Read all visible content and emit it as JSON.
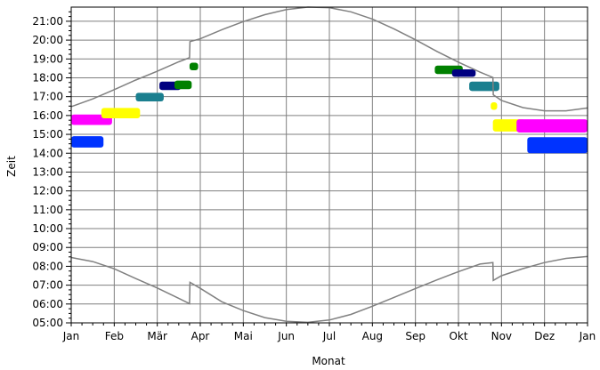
{
  "chart_data": {
    "type": "scatter",
    "xlabel": "Monat",
    "ylabel": "Zeit",
    "x_ticks": [
      "Jan",
      "Feb",
      "Mär",
      "Apr",
      "Mai",
      "Jun",
      "Jul",
      "Aug",
      "Sep",
      "Okt",
      "Nov",
      "Dez",
      "Jan"
    ],
    "y_ticks": [
      "05:00",
      "06:00",
      "07:00",
      "08:00",
      "09:00",
      "10:00",
      "11:00",
      "12:00",
      "13:00",
      "14:00",
      "15:00",
      "16:00",
      "17:00",
      "18:00",
      "19:00",
      "20:00",
      "21:00"
    ],
    "xlim": [
      0,
      12
    ],
    "ylim": [
      5,
      21.75
    ],
    "grid": true,
    "lines": [
      {
        "color": "#808080",
        "points": [
          [
            0,
            16.47
          ],
          [
            0.5,
            16.88
          ],
          [
            1,
            17.37
          ],
          [
            1.5,
            17.88
          ],
          [
            2,
            18.35
          ],
          [
            2.5,
            18.85
          ],
          [
            2.75,
            19.07
          ],
          [
            2.76,
            19.92
          ],
          [
            3,
            20.07
          ],
          [
            3.5,
            20.55
          ],
          [
            4,
            20.98
          ],
          [
            4.5,
            21.35
          ],
          [
            5,
            21.62
          ],
          [
            5.5,
            21.75
          ],
          [
            6,
            21.72
          ],
          [
            6.5,
            21.5
          ],
          [
            7,
            21.12
          ],
          [
            7.5,
            20.6
          ],
          [
            8,
            20.02
          ],
          [
            8.5,
            19.4
          ],
          [
            9,
            18.83
          ],
          [
            9.5,
            18.3
          ],
          [
            9.8,
            18.02
          ],
          [
            9.81,
            17.1
          ],
          [
            10,
            16.8
          ],
          [
            10.5,
            16.42
          ],
          [
            11,
            16.25
          ],
          [
            11.5,
            16.25
          ],
          [
            12,
            16.4
          ]
        ]
      },
      {
        "color": "#808080",
        "points": [
          [
            0,
            8.47
          ],
          [
            0.5,
            8.25
          ],
          [
            1,
            7.87
          ],
          [
            1.5,
            7.35
          ],
          [
            2,
            6.85
          ],
          [
            2.5,
            6.3
          ],
          [
            2.75,
            6.02
          ],
          [
            2.76,
            7.15
          ],
          [
            3,
            6.83
          ],
          [
            3.5,
            6.12
          ],
          [
            4,
            5.65
          ],
          [
            4.5,
            5.28
          ],
          [
            5,
            5.08
          ],
          [
            5.5,
            5.03
          ],
          [
            6,
            5.15
          ],
          [
            6.5,
            5.45
          ],
          [
            7,
            5.88
          ],
          [
            7.5,
            6.35
          ],
          [
            8,
            6.82
          ],
          [
            8.5,
            7.28
          ],
          [
            9,
            7.72
          ],
          [
            9.5,
            8.12
          ],
          [
            9.8,
            8.2
          ],
          [
            9.81,
            7.25
          ],
          [
            10,
            7.5
          ],
          [
            10.5,
            7.88
          ],
          [
            11,
            8.2
          ],
          [
            11.5,
            8.42
          ],
          [
            12,
            8.52
          ]
        ]
      }
    ],
    "blobs": [
      {
        "color": "#0033ff",
        "x": [
          0.0,
          0.75
        ],
        "y": [
          14.3,
          14.9
        ]
      },
      {
        "color": "#ff00ff",
        "x": [
          0.0,
          0.95
        ],
        "y": [
          15.5,
          16.05
        ]
      },
      {
        "color": "#ffff00",
        "x": [
          0.7,
          1.6
        ],
        "y": [
          15.85,
          16.4
        ]
      },
      {
        "color": "#1a7f8f",
        "x": [
          1.5,
          2.15
        ],
        "y": [
          16.75,
          17.2
        ]
      },
      {
        "color": "#000080",
        "x": [
          2.05,
          2.55
        ],
        "y": [
          17.35,
          17.8
        ]
      },
      {
        "color": "#008000",
        "x": [
          2.4,
          2.8
        ],
        "y": [
          17.4,
          17.85
        ]
      },
      {
        "color": "#008000",
        "x": [
          2.75,
          2.95
        ],
        "y": [
          18.4,
          18.8
        ]
      },
      {
        "color": "#008000",
        "x": [
          8.45,
          9.1
        ],
        "y": [
          18.2,
          18.65
        ]
      },
      {
        "color": "#000080",
        "x": [
          8.85,
          9.4
        ],
        "y": [
          18.05,
          18.45
        ]
      },
      {
        "color": "#1a7f8f",
        "x": [
          9.25,
          9.95
        ],
        "y": [
          17.3,
          17.8
        ]
      },
      {
        "color": "#ffff00",
        "x": [
          9.75,
          9.9
        ],
        "y": [
          16.3,
          16.7
        ]
      },
      {
        "color": "#ffff00",
        "x": [
          9.8,
          10.55
        ],
        "y": [
          15.15,
          15.8
        ]
      },
      {
        "color": "#ff00ff",
        "x": [
          10.35,
          12.0
        ],
        "y": [
          15.1,
          15.8
        ]
      },
      {
        "color": "#0033ff",
        "x": [
          10.6,
          12.0
        ],
        "y": [
          14.0,
          14.85
        ]
      }
    ]
  }
}
